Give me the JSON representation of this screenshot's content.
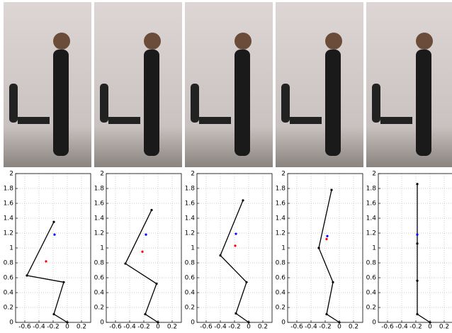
{
  "chart_data": [
    {
      "type": "line",
      "x": [
        0,
        -0.19,
        -0.05,
        -0.57,
        -0.19
      ],
      "values": [
        0,
        0.11,
        0.54,
        0.63,
        1.35
      ],
      "color": "#000000",
      "points": [
        {
          "x": -0.18,
          "y": 1.18,
          "color": "#0000ff"
        },
        {
          "x": -0.3,
          "y": 0.82,
          "color": "#ff0000"
        }
      ],
      "xlim": [
        -0.73,
        0.33
      ],
      "ylim": [
        0,
        2
      ],
      "xticks": [
        -0.6,
        -0.4,
        -0.2,
        0,
        0.2
      ],
      "yticks": [
        0,
        0.2,
        0.4,
        0.6,
        0.8,
        1,
        1.2,
        1.4,
        1.6,
        1.8,
        2
      ],
      "grid": true
    },
    {
      "type": "line",
      "x": [
        0,
        -0.18,
        -0.02,
        -0.46,
        -0.09
      ],
      "values": [
        0,
        0.11,
        0.52,
        0.79,
        1.51
      ],
      "color": "#000000",
      "points": [
        {
          "x": -0.17,
          "y": 1.18,
          "color": "#0000ff"
        },
        {
          "x": -0.22,
          "y": 0.95,
          "color": "#ff0000"
        }
      ],
      "xlim": [
        -0.73,
        0.33
      ],
      "ylim": [
        0,
        2
      ],
      "xticks": [
        -0.6,
        -0.4,
        -0.2,
        0,
        0.2
      ],
      "yticks": [
        0,
        0.2,
        0.4,
        0.6,
        0.8,
        1,
        1.2,
        1.4,
        1.6,
        1.8,
        2
      ],
      "grid": true
    },
    {
      "type": "line",
      "x": [
        0,
        -0.18,
        -0.03,
        -0.4,
        -0.08
      ],
      "values": [
        0,
        0.12,
        0.54,
        0.9,
        1.64
      ],
      "color": "#000000",
      "points": [
        {
          "x": -0.18,
          "y": 1.19,
          "color": "#0000ff"
        },
        {
          "x": -0.19,
          "y": 1.03,
          "color": "#ff0000"
        }
      ],
      "xlim": [
        -0.73,
        0.33
      ],
      "ylim": [
        0,
        2
      ],
      "xticks": [
        -0.6,
        -0.4,
        -0.2,
        0,
        0.2
      ],
      "yticks": [
        0,
        0.2,
        0.4,
        0.6,
        0.8,
        1,
        1.2,
        1.4,
        1.6,
        1.8,
        2
      ],
      "grid": true
    },
    {
      "type": "line",
      "x": [
        0,
        -0.18,
        -0.09,
        -0.29,
        -0.11
      ],
      "values": [
        0,
        0.11,
        0.54,
        1.0,
        1.78
      ],
      "color": "#000000",
      "points": [
        {
          "x": -0.17,
          "y": 1.16,
          "color": "#0000ff"
        },
        {
          "x": -0.18,
          "y": 1.12,
          "color": "#ff0000"
        }
      ],
      "xlim": [
        -0.73,
        0.33
      ],
      "ylim": [
        0,
        2
      ],
      "xticks": [
        -0.6,
        -0.4,
        -0.2,
        0,
        0.2
      ],
      "yticks": [
        0,
        0.2,
        0.4,
        0.6,
        0.8,
        1,
        1.2,
        1.4,
        1.6,
        1.8,
        2
      ],
      "grid": true
    },
    {
      "type": "line",
      "x": [
        0,
        -0.18,
        -0.18,
        -0.18,
        -0.18
      ],
      "values": [
        0,
        0.11,
        0.56,
        1.06,
        1.86
      ],
      "color": "#000000",
      "points": [
        {
          "x": -0.18,
          "y": 1.18,
          "color": "#0000ff"
        }
      ],
      "xlim": [
        -0.73,
        0.33
      ],
      "ylim": [
        0,
        2
      ],
      "xticks": [
        -0.6,
        -0.4,
        -0.2,
        0,
        0.2
      ],
      "yticks": [
        0,
        0.2,
        0.4,
        0.6,
        0.8,
        1,
        1.2,
        1.4,
        1.6,
        1.8,
        2
      ],
      "grid": true
    }
  ]
}
